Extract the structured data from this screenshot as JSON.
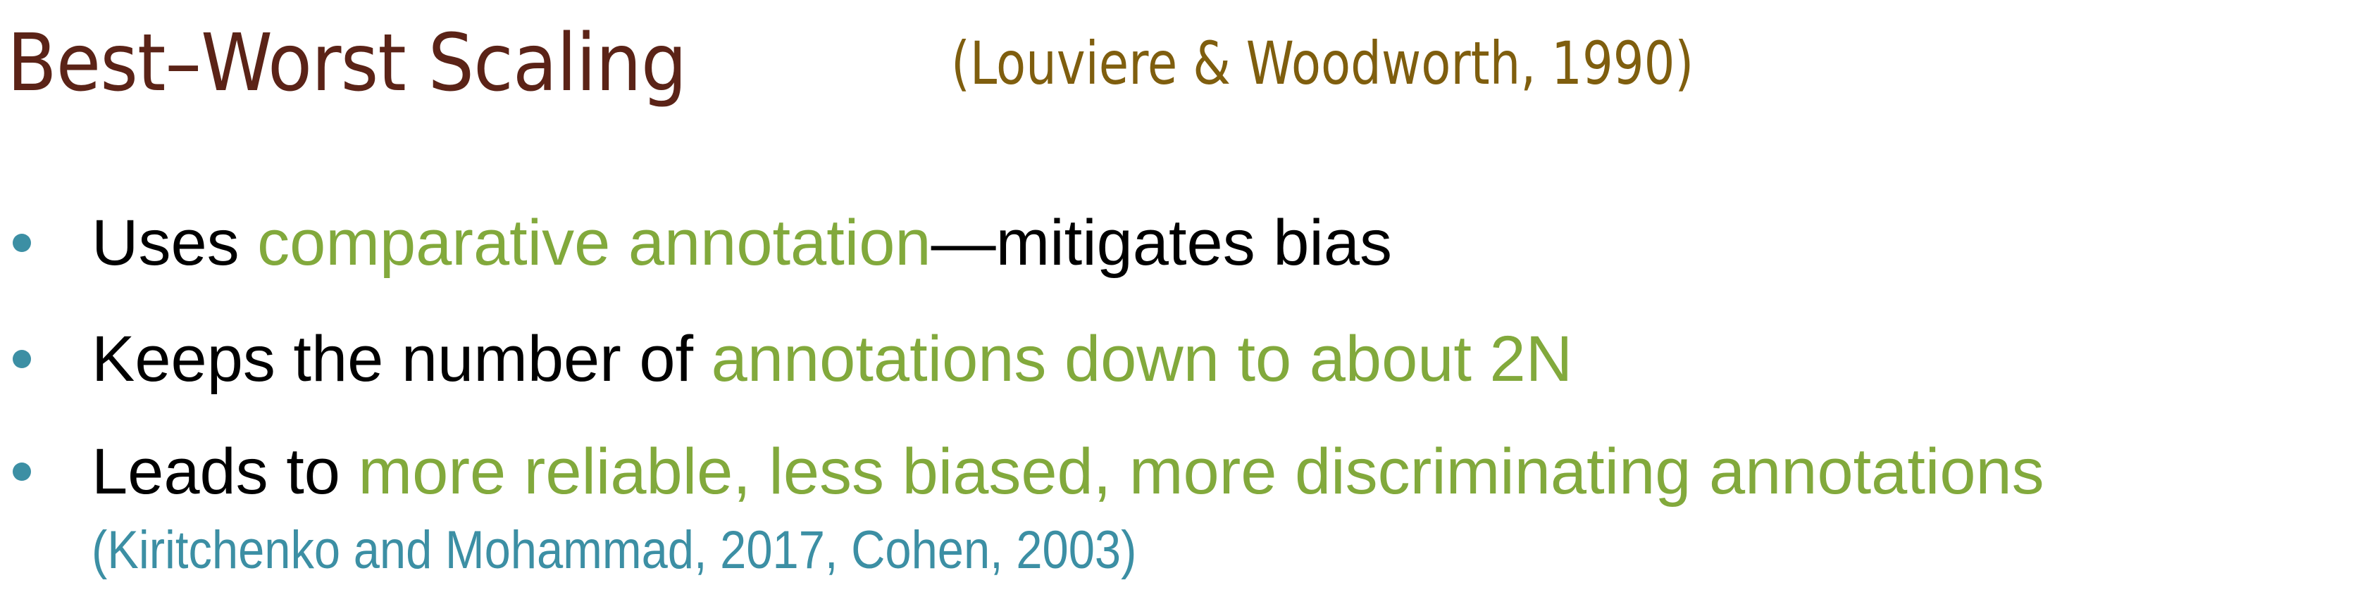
{
  "title": {
    "main": "Best–Worst Scaling",
    "citation": "(Louviere & Woodworth, 1990)"
  },
  "bullets": [
    {
      "pre": "Uses ",
      "highlight": "comparative annotation",
      "post": "—mitigates  bias"
    },
    {
      "pre": "Keeps the number of ",
      "highlight": "annotations down to about 2N",
      "post": ""
    },
    {
      "pre": "Leads to ",
      "highlight": "more reliable, less biased, more discriminating annotations",
      "post": "",
      "citation": "(Kiritchenko and Mohammad, 2017, Cohen, 2003)"
    }
  ],
  "colors": {
    "title": "#5b2317",
    "title_citation": "#7f5e0e",
    "highlight": "#82a93c",
    "bullet_dot": "#3c8fa4",
    "citation": "#3c8fa4",
    "body_text": "#000000"
  }
}
